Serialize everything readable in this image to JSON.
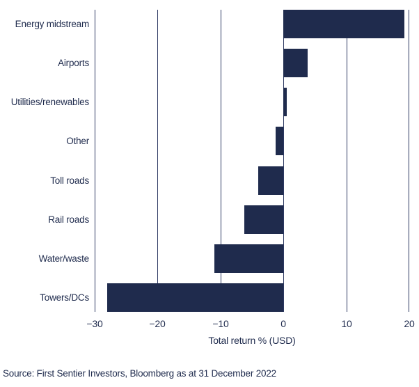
{
  "chart_data": {
    "type": "bar",
    "orientation": "horizontal",
    "title": "",
    "categories": [
      "Energy midstream",
      "Airports",
      "Utilities/renewables",
      "Other",
      "Toll roads",
      "Rail roads",
      "Water/waste",
      "Towers/DCs"
    ],
    "values": [
      19.2,
      3.9,
      0.5,
      -1.2,
      -4.0,
      -6.2,
      -11.0,
      -28.0
    ],
    "xlabel": "Total return % (USD)",
    "xlim": [
      -30,
      20
    ],
    "xticks": [
      -30,
      -20,
      -10,
      0,
      10,
      20
    ],
    "xtick_labels": [
      "−30",
      "−20",
      "−10",
      "0",
      "10",
      "20"
    ],
    "bar_color": "#1F2B4D",
    "gridline_color": "#2B3760",
    "text_color": "#1F2B4D",
    "grid": "vertical",
    "legend_position": "none"
  },
  "source_note": "Source: First Sentier Investors, Bloomberg as at 31 December 2022"
}
